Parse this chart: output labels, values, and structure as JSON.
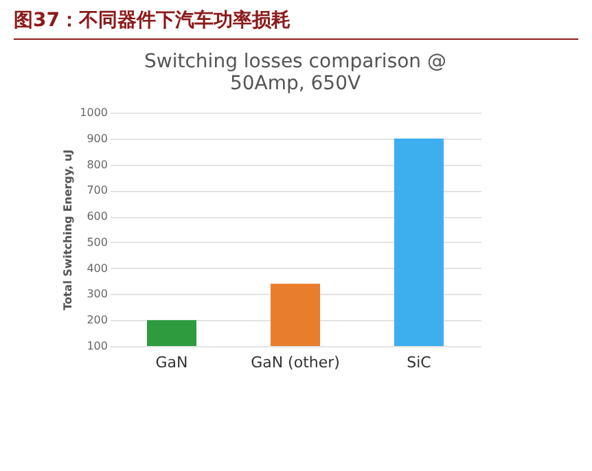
{
  "chart_data": {
    "type": "bar",
    "title": "图37：不同器件下汽车功率损耗",
    "subtitle": "Switching losses comparison @\n50Amp, 650V",
    "ylabel": "Total Switching Energy, uJ",
    "categories": [
      "GaN",
      "GaN (other)",
      "SiC"
    ],
    "values": [
      200,
      340,
      900
    ],
    "colors": [
      "#2e9b3f",
      "#e87d2c",
      "#3daeee"
    ],
    "ylim": [
      100,
      1000
    ],
    "yticks": [
      100,
      200,
      300,
      400,
      500,
      600,
      700,
      800,
      900,
      1000
    ],
    "grid": "y",
    "legend": false
  }
}
